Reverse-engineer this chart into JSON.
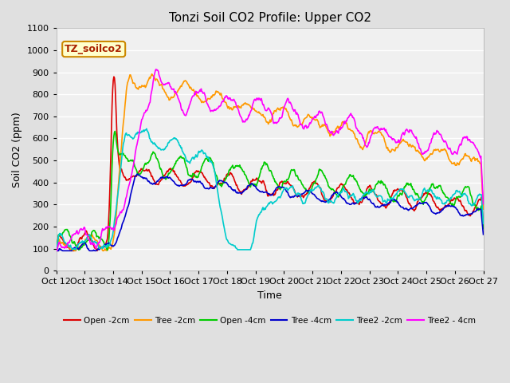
{
  "title": "Tonzi Soil CO2 Profile: Upper CO2",
  "ylabel": "Soil CO2 (ppm)",
  "xlabel": "Time",
  "watermark": "TZ_soilco2",
  "ylim": [
    0,
    1100
  ],
  "fig_facecolor": "#e0e0e0",
  "plot_facecolor": "#f0f0f0",
  "x_labels": [
    "Oct 12",
    "Oct 13",
    "Oct 14",
    "Oct 15",
    "Oct 16",
    "Oct 17",
    "Oct 18",
    "Oct 19",
    "Oct 20",
    "Oct 21",
    "Oct 22",
    "Oct 23",
    "Oct 24",
    "Oct 25",
    "Oct 26",
    "Oct 27"
  ],
  "series_names": [
    "Open -2cm",
    "Tree -2cm",
    "Open -4cm",
    "Tree -4cm",
    "Tree2 -2cm",
    "Tree2 - 4cm"
  ],
  "series_colors": [
    "#dd0000",
    "#ff9900",
    "#00cc00",
    "#0000cc",
    "#00cccc",
    "#ff00ff"
  ],
  "series_lw": [
    1.2,
    1.2,
    1.2,
    1.2,
    1.2,
    1.2
  ]
}
